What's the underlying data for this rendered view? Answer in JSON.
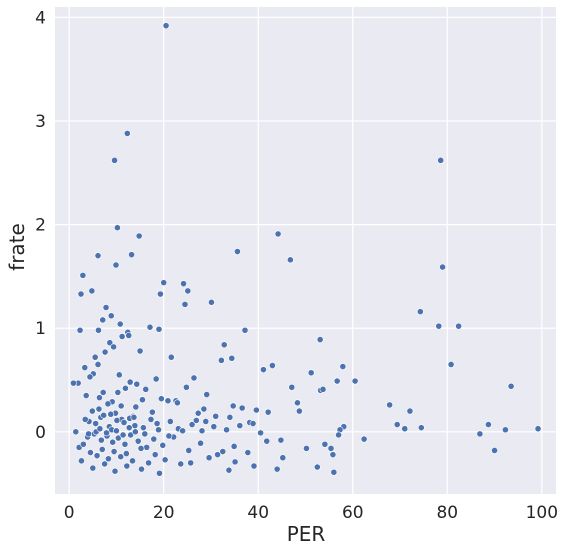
{
  "chart_data": {
    "type": "scatter",
    "title": "",
    "xlabel": "PER",
    "ylabel": "frate",
    "xlim": [
      -3,
      103
    ],
    "ylim": [
      -0.6,
      4.1
    ],
    "xticks": [
      "0",
      "20",
      "40",
      "60",
      "80",
      "100"
    ],
    "yticks": [
      "0",
      "1",
      "2",
      "3",
      "4"
    ],
    "grid": true,
    "style": {
      "background": "#eaeaf2",
      "grid_color": "#ffffff",
      "point_color": "#4c72b0",
      "point_edge": "#ffffff"
    },
    "series": [
      {
        "x": [
          20.5,
          12.3,
          9.6,
          78.6,
          10.2,
          44.2,
          14.8,
          35.6,
          46.8,
          6.1,
          13.2,
          9.9,
          79.0,
          2.9,
          4.8,
          20.0,
          19.3,
          2.5,
          24.2,
          25.1,
          24.5,
          30.1,
          74.3,
          7.8,
          8.9,
          7.1,
          12.4,
          10.8,
          6.2,
          37.2,
          78.2,
          82.4,
          53.1,
          17.1,
          19.0,
          2.3,
          12.6,
          11.2,
          8.6,
          7.6,
          5.5,
          15.0,
          32.8,
          9.4,
          21.6,
          6.1,
          43.0,
          34.4,
          57.9,
          51.2,
          5.1,
          60.5,
          80.8,
          3.3,
          1.9,
          10.6,
          32.2,
          4.4,
          26.4,
          53.2,
          12.9,
          18.4,
          14.3,
          47.1,
          56.7,
          29.1,
          53.7,
          19.5,
          41.1,
          6.4,
          10.3,
          48.3,
          58.1,
          67.8,
          48.7,
          93.5,
          42.1,
          72.1,
          16.2,
          0.9,
          7.2,
          11.9,
          20.9,
          3.6,
          24.8,
          34.7,
          22.6,
          28.5,
          15.5,
          27.3,
          9.1,
          8.2,
          14.1,
          39.6,
          69.4,
          71.0,
          74.5,
          88.7,
          92.3,
          99.2,
          57.3,
          62.4,
          86.9,
          50.2,
          55.4,
          13.6,
          11.1,
          9.8,
          6.7,
          4.2,
          4.9,
          5.6,
          7.3,
          8.5,
          10.1,
          11.6,
          12.8,
          13.9,
          15.7,
          17.3,
          18.6,
          21.4,
          23.1,
          26.0,
          28.1,
          30.6,
          33.3,
          36.1,
          38.2,
          40.5,
          44.8,
          54.1,
          55.8,
          57.0,
          90.0,
          3.9,
          5.3,
          6.8,
          8.0,
          9.2,
          10.4,
          11.8,
          13.0,
          14.6,
          16.4,
          17.9,
          19.8,
          22.1,
          25.3,
          27.8,
          31.4,
          34.9,
          37.8,
          41.8,
          45.2,
          2.1,
          3.0,
          4.5,
          5.9,
          7.0,
          8.3,
          9.5,
          10.9,
          12.1,
          13.4,
          15.2,
          16.8,
          18.2,
          20.3,
          23.6,
          29.6,
          32.5,
          35.1,
          39.1,
          4.1,
          5.7,
          6.5,
          7.9,
          9.0,
          10.0,
          11.4,
          12.7,
          14.0,
          16.0,
          18.9,
          21.1,
          24.0,
          1.4,
          3.4,
          6.3,
          8.8,
          11.0,
          13.7,
          17.6,
          22.9,
          26.9,
          31.0,
          36.6,
          2.6,
          5.0,
          7.5,
          9.7,
          12.2,
          15.3,
          19.1,
          25.7,
          33.8,
          44.0,
          52.5,
          56.0,
          34.0,
          38.9,
          28.9
        ],
        "y": [
          3.92,
          2.88,
          2.62,
          2.62,
          1.97,
          1.91,
          1.89,
          1.74,
          1.66,
          1.7,
          1.71,
          1.61,
          1.59,
          1.51,
          1.36,
          1.44,
          1.33,
          1.33,
          1.43,
          1.36,
          1.23,
          1.25,
          1.16,
          1.2,
          1.12,
          1.08,
          0.96,
          1.04,
          0.98,
          0.98,
          1.02,
          1.02,
          0.89,
          1.01,
          0.99,
          0.98,
          0.93,
          0.92,
          0.86,
          0.77,
          0.72,
          0.78,
          0.84,
          0.82,
          0.72,
          0.65,
          0.64,
          0.71,
          0.63,
          0.57,
          0.56,
          0.49,
          0.65,
          0.62,
          0.47,
          0.55,
          0.69,
          0.53,
          0.52,
          0.4,
          0.48,
          0.51,
          0.46,
          0.43,
          0.49,
          0.36,
          0.41,
          0.32,
          0.6,
          0.33,
          0.38,
          0.28,
          0.05,
          0.26,
          0.2,
          0.44,
          0.19,
          0.2,
          0.41,
          0.47,
          0.38,
          0.42,
          0.3,
          0.35,
          0.43,
          0.25,
          0.3,
          0.22,
          0.31,
          0.18,
          0.29,
          0.27,
          0.24,
          0.21,
          0.07,
          0.03,
          0.04,
          0.07,
          0.02,
          0.03,
          0.02,
          -0.07,
          -0.02,
          -0.16,
          -0.16,
          0.15,
          0.12,
          0.18,
          0.14,
          0.1,
          0.2,
          0.08,
          0.16,
          0.05,
          0.11,
          0.09,
          0.13,
          0.06,
          0.04,
          0.12,
          0.08,
          0.1,
          0.03,
          0.07,
          0.01,
          0.05,
          0.02,
          0.06,
          0.09,
          -0.01,
          -0.08,
          -0.12,
          -0.22,
          -0.03,
          -0.18,
          -0.05,
          -0.02,
          -0.08,
          -0.04,
          -0.1,
          -0.06,
          -0.12,
          -0.03,
          -0.09,
          -0.15,
          -0.07,
          -0.13,
          -0.05,
          -0.18,
          -0.11,
          -0.22,
          -0.14,
          -0.2,
          -0.09,
          -0.25,
          -0.15,
          -0.12,
          -0.2,
          -0.23,
          -0.17,
          -0.26,
          -0.19,
          -0.24,
          -0.21,
          -0.28,
          -0.16,
          -0.3,
          -0.22,
          -0.27,
          -0.31,
          -0.25,
          -0.19,
          -0.29,
          -0.33,
          -0.02,
          0.0,
          0.03,
          -0.01,
          0.02,
          0.01,
          -0.03,
          0.04,
          0.0,
          -0.02,
          0.02,
          -0.04,
          0.01,
          0.0,
          0.12,
          0.22,
          0.17,
          0.25,
          0.14,
          0.19,
          0.28,
          0.11,
          0.15,
          0.23,
          -0.28,
          -0.35,
          -0.31,
          -0.38,
          -0.33,
          -0.36,
          -0.4,
          -0.3,
          -0.37,
          -0.36,
          -0.34,
          -0.39,
          0.14,
          0.08,
          0.1
        ]
      }
    ]
  }
}
